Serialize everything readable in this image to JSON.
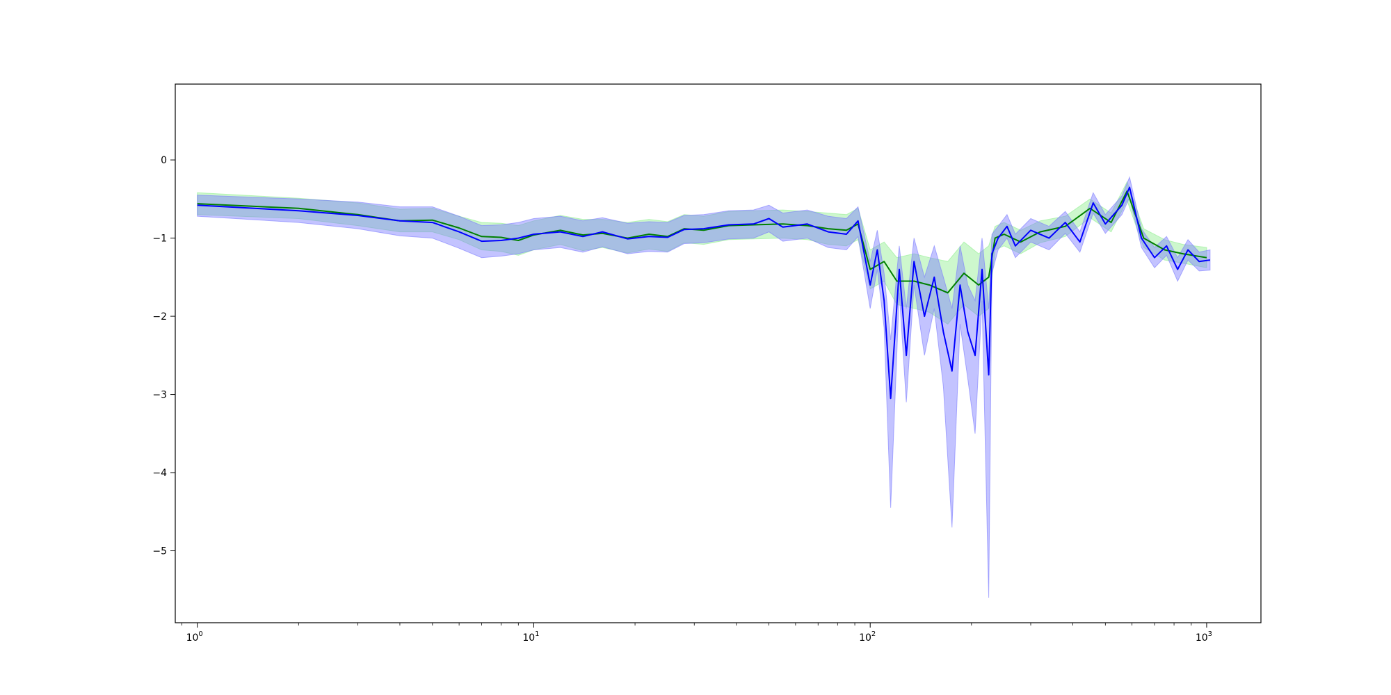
{
  "chart_data": {
    "type": "line",
    "title": "",
    "xlabel": "",
    "ylabel": "",
    "xscale": "log",
    "xlim": [
      0.86,
      1450
    ],
    "ylim": [
      -5.92,
      0.97
    ],
    "grid": false,
    "legend": "none",
    "x_ticks": [
      {
        "value": 1,
        "base": "10",
        "exp": "0"
      },
      {
        "value": 10,
        "base": "10",
        "exp": "1"
      },
      {
        "value": 100,
        "base": "10",
        "exp": "2"
      },
      {
        "value": 1000,
        "base": "10",
        "exp": "3"
      }
    ],
    "y_ticks": [
      {
        "value": 0,
        "label": "0"
      },
      {
        "value": -1,
        "label": "−1"
      },
      {
        "value": -2,
        "label": "−2"
      },
      {
        "value": -3,
        "label": "−3"
      },
      {
        "value": -4,
        "label": "−4"
      },
      {
        "value": -5,
        "label": "−5"
      }
    ],
    "series": [
      {
        "color": "#008000",
        "band_color": "#90ee90",
        "points": [
          [
            1,
            -0.56,
            -0.42,
            -0.7
          ],
          [
            2,
            -0.62,
            -0.49,
            -0.75
          ],
          [
            3,
            -0.7,
            -0.55,
            -0.84
          ],
          [
            4,
            -0.78,
            -0.63,
            -0.92
          ],
          [
            5,
            -0.77,
            -0.62,
            -0.92
          ],
          [
            6,
            -0.87,
            -0.72,
            -1.02
          ],
          [
            7,
            -0.98,
            -0.8,
            -1.15
          ],
          [
            8,
            -0.99,
            -0.81,
            -1.17
          ],
          [
            9,
            -1.03,
            -0.84,
            -1.22
          ],
          [
            10,
            -0.96,
            -0.78,
            -1.15
          ],
          [
            12,
            -0.9,
            -0.71,
            -1.08
          ],
          [
            14,
            -0.96,
            -0.76,
            -1.16
          ],
          [
            16,
            -0.94,
            -0.76,
            -1.12
          ],
          [
            19,
            -1.0,
            -0.8,
            -1.19
          ],
          [
            22,
            -0.95,
            -0.76,
            -1.14
          ],
          [
            25,
            -0.98,
            -0.79,
            -1.17
          ],
          [
            28,
            -0.88,
            -0.7,
            -1.06
          ],
          [
            32,
            -0.9,
            -0.72,
            -1.08
          ],
          [
            38,
            -0.84,
            -0.66,
            -1.02
          ],
          [
            45,
            -0.83,
            -0.65,
            -1.01
          ],
          [
            55,
            -0.82,
            -0.64,
            -1.0
          ],
          [
            65,
            -0.84,
            -0.66,
            -1.02
          ],
          [
            75,
            -0.88,
            -0.68,
            -1.08
          ],
          [
            85,
            -0.9,
            -0.7,
            -1.1
          ],
          [
            92,
            -0.82,
            -0.62,
            -1.02
          ],
          [
            100,
            -1.4,
            -1.15,
            -1.65
          ],
          [
            110,
            -1.3,
            -1.05,
            -1.55
          ],
          [
            120,
            -1.55,
            -1.25,
            -1.85
          ],
          [
            135,
            -1.55,
            -1.2,
            -1.9
          ],
          [
            150,
            -1.6,
            -1.25,
            -1.95
          ],
          [
            170,
            -1.7,
            -1.3,
            -2.1
          ],
          [
            190,
            -1.45,
            -1.05,
            -1.85
          ],
          [
            210,
            -1.6,
            -1.2,
            -2.0
          ],
          [
            225,
            -1.5,
            -1.1,
            -1.9
          ],
          [
            235,
            -1.0,
            -0.85,
            -1.15
          ],
          [
            250,
            -0.95,
            -0.8,
            -1.1
          ],
          [
            280,
            -1.05,
            -0.9,
            -1.2
          ],
          [
            320,
            -0.92,
            -0.78,
            -1.06
          ],
          [
            380,
            -0.85,
            -0.72,
            -0.98
          ],
          [
            450,
            -0.62,
            -0.5,
            -0.74
          ],
          [
            520,
            -0.8,
            -0.68,
            -0.92
          ],
          [
            580,
            -0.4,
            -0.28,
            -0.52
          ],
          [
            650,
            -1.0,
            -0.88,
            -1.12
          ],
          [
            750,
            -1.15,
            -1.02,
            -1.28
          ],
          [
            850,
            -1.2,
            -1.08,
            -1.32
          ],
          [
            1000,
            -1.25,
            -1.12,
            -1.38
          ]
        ]
      },
      {
        "color": "#0000ff",
        "band_color": "#7b7bff",
        "points": [
          [
            1,
            -0.58,
            -0.45,
            -0.72
          ],
          [
            2,
            -0.65,
            -0.5,
            -0.8
          ],
          [
            3,
            -0.71,
            -0.54,
            -0.88
          ],
          [
            4,
            -0.78,
            -0.6,
            -0.97
          ],
          [
            5,
            -0.8,
            -0.6,
            -1.0
          ],
          [
            6,
            -0.92,
            -0.72,
            -1.13
          ],
          [
            7,
            -1.04,
            -0.84,
            -1.25
          ],
          [
            8,
            -1.03,
            -0.83,
            -1.23
          ],
          [
            9,
            -1.0,
            -0.8,
            -1.2
          ],
          [
            10,
            -0.95,
            -0.75,
            -1.15
          ],
          [
            12,
            -0.92,
            -0.72,
            -1.12
          ],
          [
            14,
            -0.98,
            -0.78,
            -1.18
          ],
          [
            16,
            -0.92,
            -0.74,
            -1.11
          ],
          [
            19,
            -1.01,
            -0.81,
            -1.2
          ],
          [
            22,
            -0.98,
            -0.79,
            -1.17
          ],
          [
            25,
            -0.99,
            -0.8,
            -1.18
          ],
          [
            28,
            -0.89,
            -0.71,
            -1.07
          ],
          [
            32,
            -0.88,
            -0.7,
            -1.06
          ],
          [
            38,
            -0.83,
            -0.65,
            -1.01
          ],
          [
            45,
            -0.82,
            -0.64,
            -1.0
          ],
          [
            50,
            -0.75,
            -0.58,
            -0.92
          ],
          [
            55,
            -0.86,
            -0.68,
            -1.04
          ],
          [
            65,
            -0.82,
            -0.64,
            -1.0
          ],
          [
            75,
            -0.92,
            -0.72,
            -1.12
          ],
          [
            85,
            -0.95,
            -0.75,
            -1.15
          ],
          [
            92,
            -0.78,
            -0.6,
            -0.98
          ],
          [
            100,
            -1.6,
            -1.3,
            -1.9
          ],
          [
            105,
            -1.15,
            -0.9,
            -1.4
          ],
          [
            110,
            -1.8,
            -1.45,
            -2.15
          ],
          [
            115,
            -3.05,
            -2.3,
            -4.45
          ],
          [
            122,
            -1.4,
            -1.1,
            -1.7
          ],
          [
            128,
            -2.5,
            -1.9,
            -3.1
          ],
          [
            135,
            -1.3,
            -1.0,
            -1.6
          ],
          [
            145,
            -2.0,
            -1.5,
            -2.5
          ],
          [
            155,
            -1.5,
            -1.1,
            -1.9
          ],
          [
            165,
            -2.2,
            -1.5,
            -2.9
          ],
          [
            175,
            -2.7,
            -1.9,
            -4.7
          ],
          [
            185,
            -1.6,
            -1.1,
            -2.1
          ],
          [
            195,
            -2.2,
            -1.6,
            -2.8
          ],
          [
            205,
            -2.5,
            -1.8,
            -3.5
          ],
          [
            215,
            -1.4,
            -1.0,
            -1.8
          ],
          [
            225,
            -2.75,
            -1.9,
            -5.6
          ],
          [
            230,
            -1.2,
            -0.95,
            -1.45
          ],
          [
            240,
            -1.0,
            -0.85,
            -1.15
          ],
          [
            255,
            -0.85,
            -0.7,
            -1.0
          ],
          [
            270,
            -1.1,
            -0.95,
            -1.25
          ],
          [
            300,
            -0.9,
            -0.75,
            -1.05
          ],
          [
            340,
            -1.0,
            -0.85,
            -1.15
          ],
          [
            380,
            -0.8,
            -0.66,
            -0.94
          ],
          [
            420,
            -1.05,
            -0.92,
            -1.18
          ],
          [
            460,
            -0.55,
            -0.42,
            -0.68
          ],
          [
            500,
            -0.82,
            -0.7,
            -0.94
          ],
          [
            560,
            -0.58,
            -0.46,
            -0.7
          ],
          [
            590,
            -0.35,
            -0.22,
            -0.48
          ],
          [
            640,
            -1.0,
            -0.88,
            -1.12
          ],
          [
            700,
            -1.25,
            -1.12,
            -1.38
          ],
          [
            760,
            -1.1,
            -0.98,
            -1.22
          ],
          [
            820,
            -1.4,
            -1.25,
            -1.55
          ],
          [
            880,
            -1.15,
            -1.02,
            -1.28
          ],
          [
            950,
            -1.3,
            -1.18,
            -1.42
          ],
          [
            1024,
            -1.28,
            -1.15,
            -1.41
          ]
        ]
      }
    ]
  }
}
